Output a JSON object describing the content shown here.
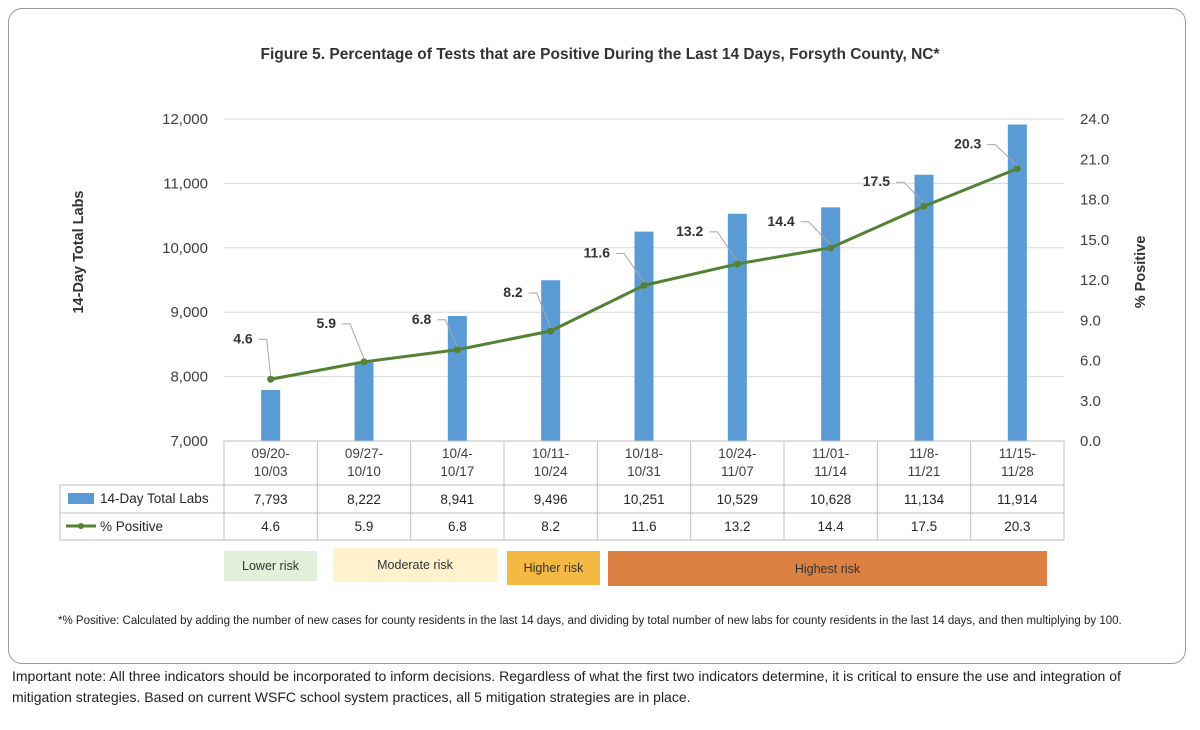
{
  "title": "Figure 5. Percentage of Tests that are Positive During the Last 14 Days, Forsyth County, NC*",
  "chart_data": {
    "type": "bar",
    "title": "Figure 5. Percentage of Tests that are Positive During the Last 14 Days, Forsyth County, NC*",
    "categories": [
      [
        "09/20-",
        "10/03"
      ],
      [
        "09/27-",
        "10/10"
      ],
      [
        "10/4-",
        "10/17"
      ],
      [
        "10/11-",
        "10/24"
      ],
      [
        "10/18-",
        "10/31"
      ],
      [
        "10/24-",
        "11/07"
      ],
      [
        "11/01-",
        "11/14"
      ],
      [
        "11/8-",
        "11/21"
      ],
      [
        "11/15-",
        "11/28"
      ]
    ],
    "series": [
      {
        "name": "14-Day Total Labs",
        "type": "bar",
        "axis": "left",
        "color": "#5b9bd5",
        "values": [
          7793,
          8222,
          8941,
          9496,
          10251,
          10529,
          10628,
          11134,
          11914
        ],
        "labels": [
          "7,793",
          "8,222",
          "8,941",
          "9,496",
          "10,251",
          "10,529",
          "10,628",
          "11,134",
          "11,914"
        ]
      },
      {
        "name": "% Positive",
        "type": "line",
        "axis": "right",
        "color": "#548235",
        "values": [
          4.6,
          5.9,
          6.8,
          8.2,
          11.6,
          13.2,
          14.4,
          17.5,
          20.3
        ],
        "labels": [
          "4.6",
          "5.9",
          "6.8",
          "8.2",
          "11.6",
          "13.2",
          "14.4",
          "17.5",
          "20.3"
        ]
      }
    ],
    "ylabel": "14-Day Total Labs",
    "y2label": "% Positive",
    "ylim": [
      7000,
      12000
    ],
    "y2lim": [
      0,
      24
    ],
    "yticks": [
      "7,000",
      "8,000",
      "9,000",
      "10,000",
      "11,000",
      "12,000"
    ],
    "y2ticks": [
      "0.0",
      "3.0",
      "6.0",
      "9.0",
      "12.0",
      "15.0",
      "18.0",
      "21.0",
      "24.0"
    ],
    "grid": true,
    "data_table": true
  },
  "risk_levels": [
    {
      "label": "Lower risk",
      "color": "#e2efda"
    },
    {
      "label": "Moderate risk",
      "color": "#fff2cc"
    },
    {
      "label": "Higher risk",
      "color": "#f4b942"
    },
    {
      "label": "Highest risk",
      "color": "#dd8142"
    }
  ],
  "footnote": "*% Positive: Calculated by adding the number of new cases for county residents in the last 14 days, and dividing by total number of new labs for county residents in the last 14 days, and then multiplying by 100.",
  "important_note": "Important note: All three indicators should be incorporated to inform decisions. Regardless of what the first two indicators determine, it is critical to ensure the use and integration of mitigation strategies. Based on current WSFC school system practices, all 5 mitigation strategies are in place."
}
